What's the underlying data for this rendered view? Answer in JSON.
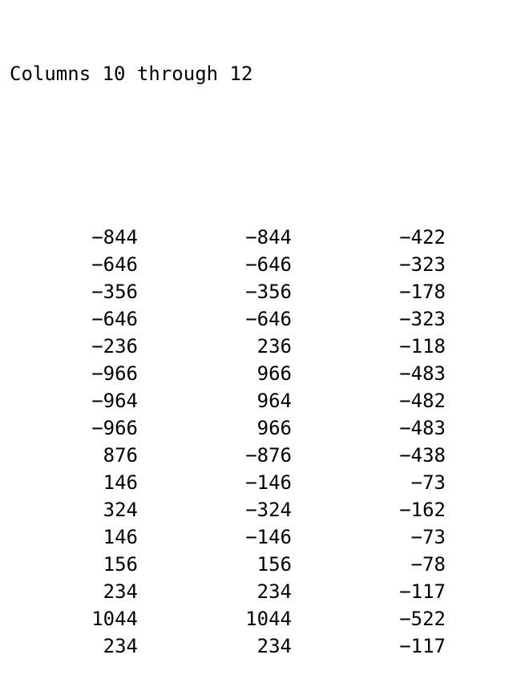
{
  "console": {
    "header": "Columns 10 through 12",
    "rows": [
      [
        "−844",
        "−844",
        "−422"
      ],
      [
        "−646",
        "−646",
        "−323"
      ],
      [
        "−356",
        "−356",
        "−178"
      ],
      [
        "−646",
        "−646",
        "−323"
      ],
      [
        "−236",
        "236",
        "−118"
      ],
      [
        "−966",
        "966",
        "−483"
      ],
      [
        "−964",
        "964",
        "−482"
      ],
      [
        "−966",
        "966",
        "−483"
      ],
      [
        "876",
        "−876",
        "−438"
      ],
      [
        "146",
        "−146",
        "−73"
      ],
      [
        "324",
        "−324",
        "−162"
      ],
      [
        "146",
        "−146",
        "−73"
      ],
      [
        "156",
        "156",
        "−78"
      ],
      [
        "234",
        "234",
        "−117"
      ],
      [
        "1044",
        "1044",
        "−522"
      ],
      [
        "234",
        "234",
        "−117"
      ]
    ]
  }
}
